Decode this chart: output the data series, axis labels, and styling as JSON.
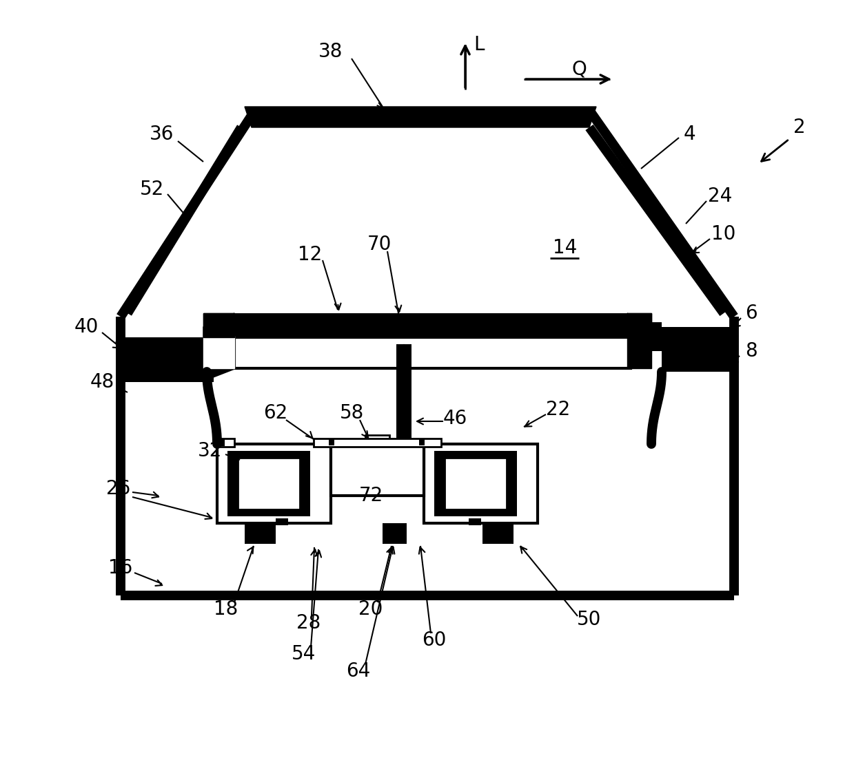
{
  "bg_color": "#ffffff",
  "lc": "#000000",
  "tlw": 10,
  "mlw": 4,
  "slw": 2,
  "font_size": 20
}
